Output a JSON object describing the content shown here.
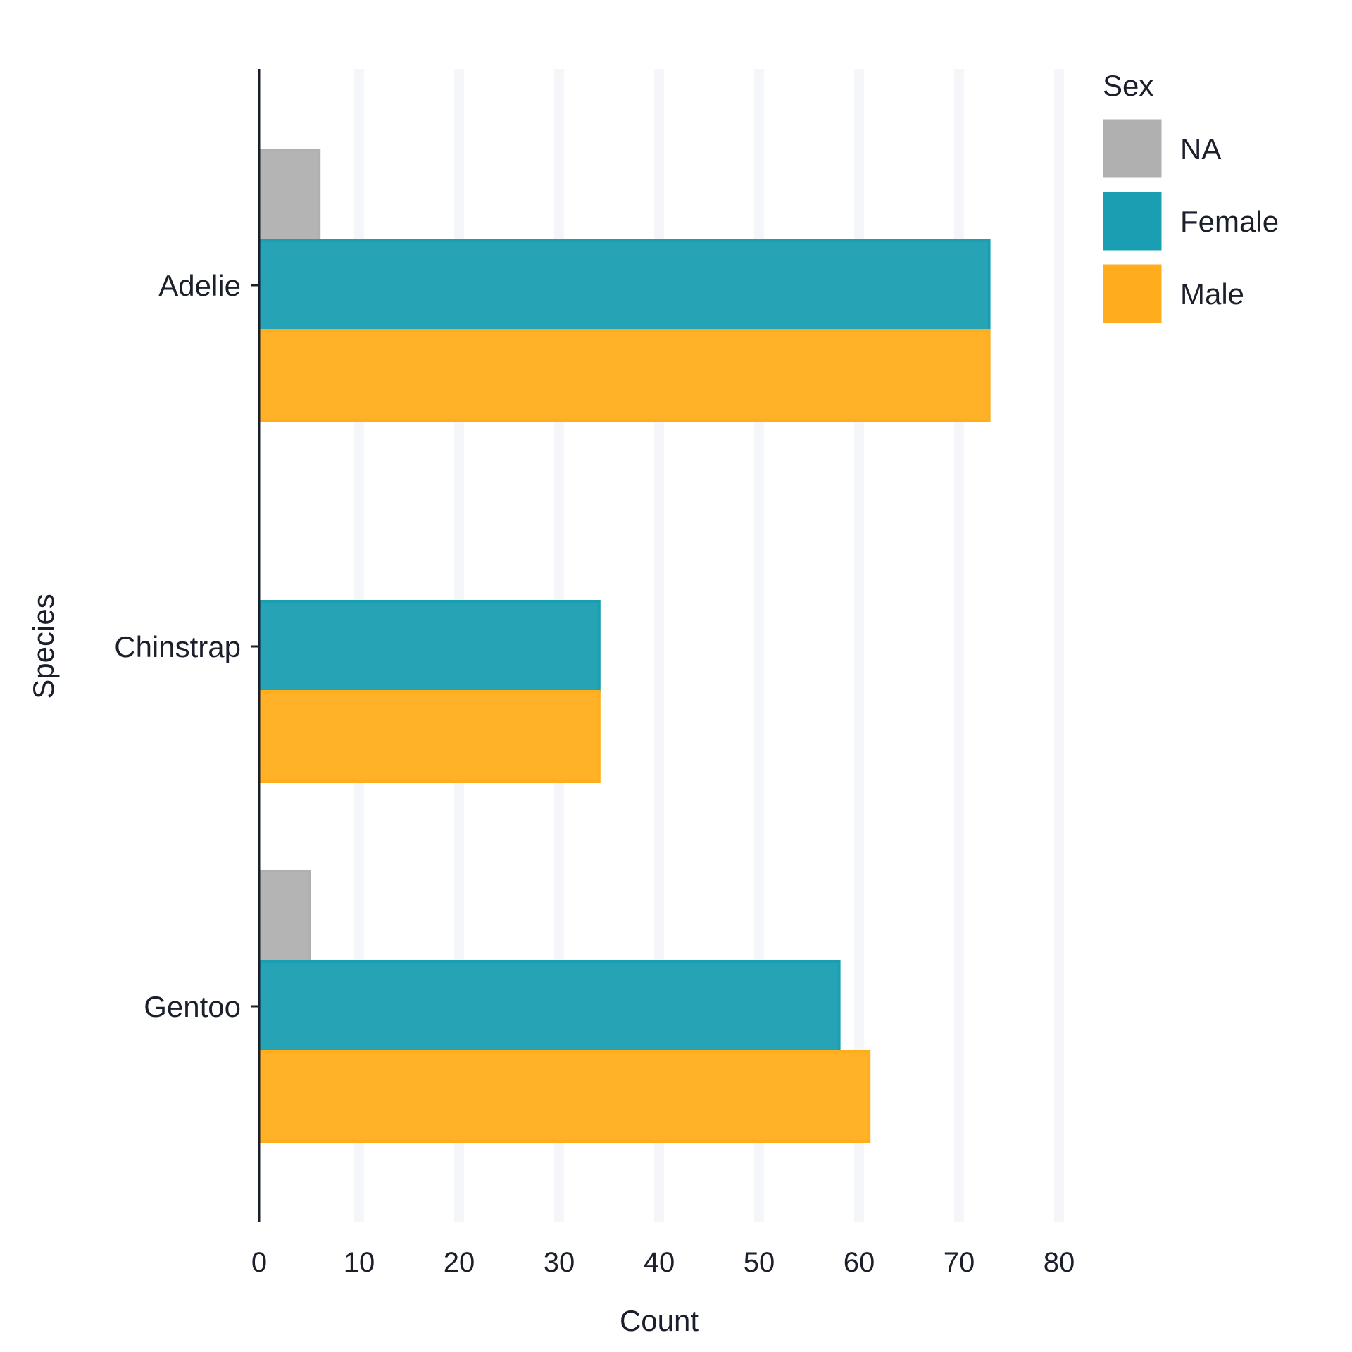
{
  "chart_data": {
    "type": "bar",
    "orientation": "horizontal",
    "categories": [
      "Adelie",
      "Chinstrap",
      "Gentoo"
    ],
    "series": [
      {
        "name": "NA",
        "color": "#b0b0b0",
        "values": [
          6,
          0,
          5
        ]
      },
      {
        "name": "Female",
        "color": "#1a9fb2",
        "values": [
          73,
          34,
          58
        ]
      },
      {
        "name": "Male",
        "color": "#ffad1c",
        "values": [
          73,
          34,
          61
        ]
      }
    ],
    "xlabel": "Count",
    "ylabel": "Species",
    "xlim": [
      0,
      80
    ],
    "xticks": [
      "0",
      "10",
      "20",
      "30",
      "40",
      "50",
      "60",
      "70",
      "80"
    ],
    "grid": "vertical",
    "legend": {
      "title": "Sex",
      "placement": "right",
      "entries": [
        "NA",
        "Female",
        "Male"
      ]
    },
    "colors": {
      "grid": "#f4f6f9",
      "axis": "#1a1f2b",
      "text": "#1a1f2b"
    }
  }
}
